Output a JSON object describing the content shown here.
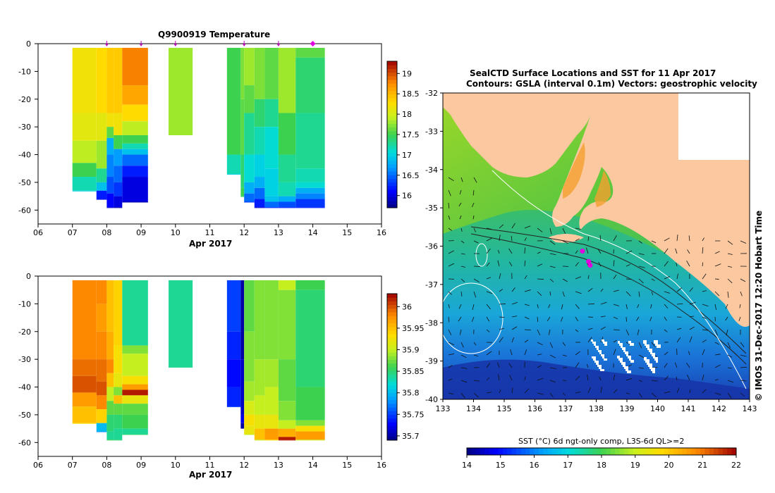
{
  "chart_data": [
    {
      "id": "temperature",
      "type": "heatmap",
      "title": "Q9900919  Temperature",
      "xlabel": "Apr 2017",
      "xlim": [
        6,
        16
      ],
      "ylim": [
        -65,
        0
      ],
      "x_ticks": [
        "06",
        "07",
        "08",
        "09",
        "10",
        "11",
        "12",
        "13",
        "14",
        "15",
        "16"
      ],
      "y_ticks": [
        "0",
        "-10",
        "-20",
        "-30",
        "-40",
        "-50",
        "-60"
      ],
      "colorbar": {
        "min": 15.7,
        "max": 19.3,
        "ticks": [
          "16",
          "16.5",
          "17",
          "17.5",
          "18",
          "18.5",
          "19"
        ]
      },
      "profile_markers": [
        8,
        9,
        10,
        12,
        13,
        14
      ],
      "profiles": [
        {
          "x0": 7.0,
          "x1": 7.7,
          "depth": 53,
          "segments": [
            [
              0,
              18.2
            ],
            [
              -25,
              18.1
            ],
            [
              -35,
              17.9
            ],
            [
              -43,
              17.5
            ],
            [
              -48,
              17.2
            ],
            [
              -53,
              17.0
            ]
          ]
        },
        {
          "x0": 7.7,
          "x1": 8.0,
          "depth": 56,
          "segments": [
            [
              0,
              18.3
            ],
            [
              -25,
              18.1
            ],
            [
              -35,
              17.8
            ],
            [
              -45,
              17.3
            ],
            [
              -50,
              16.9
            ],
            [
              -53,
              16.2
            ],
            [
              -56,
              16.0
            ]
          ]
        },
        {
          "x0": 8.0,
          "x1": 8.2,
          "depth": 59,
          "segments": [
            [
              0,
              18.4
            ],
            [
              -25,
              18.2
            ],
            [
              -30,
              17.6
            ],
            [
              -34,
              16.8
            ],
            [
              -40,
              16.6
            ],
            [
              -48,
              16.4
            ],
            [
              -54,
              16.1
            ],
            [
              -59,
              15.9
            ]
          ]
        },
        {
          "x0": 8.2,
          "x1": 8.45,
          "depth": 59,
          "segments": [
            [
              0,
              18.4
            ],
            [
              -25,
              18.2
            ],
            [
              -33,
              17.5
            ],
            [
              -38,
              16.7
            ],
            [
              -44,
              16.5
            ],
            [
              -50,
              16.3
            ],
            [
              -55,
              16.0
            ],
            [
              -59,
              15.8
            ]
          ]
        },
        {
          "x0": 8.45,
          "x1": 9.2,
          "depth": 57,
          "segments": [
            [
              0,
              18.8
            ],
            [
              -15,
              18.6
            ],
            [
              -22,
              18.3
            ],
            [
              -28,
              17.9
            ],
            [
              -33,
              17.5
            ],
            [
              -36,
              17.2
            ],
            [
              -38,
              16.9
            ],
            [
              -40,
              16.5
            ],
            [
              -44,
              16.2
            ],
            [
              -48,
              16.0
            ],
            [
              -57,
              15.8
            ]
          ]
        },
        {
          "x0": 9.8,
          "x1": 10.5,
          "depth": 33,
          "segments": [
            [
              0,
              17.8
            ]
          ]
        },
        {
          "x0": 11.5,
          "x1": 11.9,
          "depth": 47,
          "segments": [
            [
              0,
              17.5
            ],
            [
              -40,
              17.2
            ],
            [
              -47,
              17.0
            ]
          ]
        },
        {
          "x0": 11.9,
          "x1": 12.0,
          "depth": 55,
          "segments": [
            [
              0,
              17.7
            ],
            [
              -20,
              17.6
            ],
            [
              -40,
              17.4
            ],
            [
              -52,
              17.5
            ],
            [
              -55,
              17.4
            ]
          ]
        },
        {
          "x0": 12.0,
          "x1": 12.3,
          "depth": 57,
          "segments": [
            [
              0,
              17.8
            ],
            [
              -15,
              17.6
            ],
            [
              -25,
              17.3
            ],
            [
              -40,
              17.1
            ],
            [
              -50,
              16.8
            ],
            [
              -54,
              16.5
            ],
            [
              -57,
              16.3
            ]
          ]
        },
        {
          "x0": 12.3,
          "x1": 12.6,
          "depth": 59,
          "segments": [
            [
              0,
              17.7
            ],
            [
              -20,
              17.4
            ],
            [
              -30,
              17.2
            ],
            [
              -40,
              17.0
            ],
            [
              -48,
              16.8
            ],
            [
              -52,
              16.5
            ],
            [
              -56,
              16.2
            ],
            [
              -59,
              15.9
            ]
          ]
        },
        {
          "x0": 12.6,
          "x1": 13.0,
          "depth": 59,
          "segments": [
            [
              0,
              17.6
            ],
            [
              -20,
              17.3
            ],
            [
              -30,
              17.1
            ],
            [
              -45,
              17.0
            ],
            [
              -55,
              16.9
            ],
            [
              -57,
              16.5
            ],
            [
              -59,
              16.2
            ]
          ]
        },
        {
          "x0": 13.0,
          "x1": 13.5,
          "depth": 59,
          "segments": [
            [
              0,
              17.8
            ],
            [
              -25,
              17.5
            ],
            [
              -40,
              17.3
            ],
            [
              -50,
              17.2
            ],
            [
              -55,
              16.8
            ],
            [
              -57,
              16.4
            ],
            [
              -59,
              16.2
            ]
          ]
        },
        {
          "x0": 13.5,
          "x1": 14.35,
          "depth": 59,
          "segments": [
            [
              0,
              17.6
            ],
            [
              -5,
              17.4
            ],
            [
              -25,
              17.3
            ],
            [
              -45,
              17.2
            ],
            [
              -50,
              17.1
            ],
            [
              -52,
              16.8
            ],
            [
              -54,
              16.6
            ],
            [
              -56,
              16.3
            ],
            [
              -59,
              16.2
            ]
          ]
        }
      ]
    },
    {
      "id": "salinity",
      "type": "heatmap",
      "title": "",
      "xlabel": "Apr 2017",
      "xlim": [
        6,
        16
      ],
      "ylim": [
        -65,
        0
      ],
      "x_ticks": [
        "06",
        "07",
        "08",
        "09",
        "10",
        "11",
        "12",
        "13",
        "14",
        "15",
        "16"
      ],
      "y_ticks": [
        "0",
        "-10",
        "-20",
        "-30",
        "-40",
        "-50",
        "-60"
      ],
      "colorbar": {
        "min": 35.69,
        "max": 36.03,
        "ticks": [
          "35.7",
          "35.75",
          "35.8",
          "35.85",
          "35.9",
          "35.95",
          "36"
        ]
      },
      "profiles": [
        {
          "x0": 7.0,
          "x1": 7.7,
          "depth": 53,
          "segments": [
            [
              0,
              35.98
            ],
            [
              -30,
              35.99
            ],
            [
              -36,
              36.0
            ],
            [
              -42,
              35.97
            ],
            [
              -47,
              35.95
            ],
            [
              -53,
              35.93
            ]
          ]
        },
        {
          "x0": 7.7,
          "x1": 8.0,
          "depth": 56,
          "segments": [
            [
              0,
              35.98
            ],
            [
              -10,
              35.97
            ],
            [
              -20,
              35.98
            ],
            [
              -30,
              35.99
            ],
            [
              -38,
              36.0
            ],
            [
              -43,
              35.98
            ],
            [
              -48,
              35.94
            ],
            [
              -53,
              35.8
            ],
            [
              -56,
              35.78
            ]
          ]
        },
        {
          "x0": 8.0,
          "x1": 8.2,
          "depth": 59,
          "segments": [
            [
              0,
              35.95
            ],
            [
              -20,
              35.96
            ],
            [
              -30,
              35.98
            ],
            [
              -35,
              35.95
            ],
            [
              -40,
              35.9
            ],
            [
              -45,
              35.87
            ],
            [
              -50,
              35.85
            ],
            [
              -56,
              35.84
            ],
            [
              -59,
              35.86
            ]
          ]
        },
        {
          "x0": 8.2,
          "x1": 8.45,
          "depth": 59,
          "segments": [
            [
              0,
              35.94
            ],
            [
              -25,
              35.93
            ],
            [
              -35,
              35.92
            ],
            [
              -40,
              35.88
            ],
            [
              -43,
              35.95
            ],
            [
              -46,
              35.87
            ],
            [
              -50,
              35.85
            ],
            [
              -55,
              35.84
            ],
            [
              -59,
              35.85
            ]
          ]
        },
        {
          "x0": 8.45,
          "x1": 9.2,
          "depth": 57,
          "segments": [
            [
              0,
              35.84
            ],
            [
              -25,
              35.88
            ],
            [
              -28,
              35.9
            ],
            [
              -36,
              35.93
            ],
            [
              -39,
              35.97
            ],
            [
              -41,
              36.02
            ],
            [
              -43,
              35.92
            ],
            [
              -46,
              35.87
            ],
            [
              -50,
              35.86
            ],
            [
              -55,
              35.84
            ],
            [
              -57,
              35.85
            ]
          ]
        },
        {
          "x0": 9.8,
          "x1": 10.5,
          "depth": 33,
          "segments": [
            [
              0,
              35.84
            ]
          ]
        },
        {
          "x0": 11.5,
          "x1": 11.9,
          "depth": 47,
          "segments": [
            [
              0,
              35.75
            ],
            [
              -20,
              35.74
            ],
            [
              -30,
              35.73
            ],
            [
              -40,
              35.74
            ],
            [
              -47,
              35.75
            ]
          ]
        },
        {
          "x0": 11.9,
          "x1": 12.0,
          "depth": 55,
          "segments": [
            [
              0,
              35.7
            ],
            [
              -30,
              35.71
            ],
            [
              -50,
              35.72
            ],
            [
              -53,
              35.7
            ]
          ]
        },
        {
          "x0": 12.0,
          "x1": 12.3,
          "depth": 57,
          "segments": [
            [
              0,
              35.87
            ],
            [
              -20,
              35.88
            ],
            [
              -38,
              35.89
            ],
            [
              -45,
              35.91
            ],
            [
              -50,
              35.93
            ],
            [
              -54,
              35.92
            ],
            [
              -57,
              35.9
            ]
          ]
        },
        {
          "x0": 12.3,
          "x1": 12.6,
          "depth": 59,
          "segments": [
            [
              0,
              35.88
            ],
            [
              -30,
              35.89
            ],
            [
              -43,
              35.9
            ],
            [
              -50,
              35.92
            ],
            [
              -55,
              35.95
            ],
            [
              -59,
              35.9
            ]
          ]
        },
        {
          "x0": 12.6,
          "x1": 13.0,
          "depth": 59,
          "segments": [
            [
              0,
              35.88
            ],
            [
              -30,
              35.89
            ],
            [
              -40,
              35.9
            ],
            [
              -50,
              35.92
            ],
            [
              -55,
              35.97
            ],
            [
              -59,
              35.93
            ]
          ]
        },
        {
          "x0": 13.0,
          "x1": 13.5,
          "depth": 59,
          "segments": [
            [
              0,
              35.9
            ],
            [
              -5,
              35.88
            ],
            [
              -30,
              35.87
            ],
            [
              -45,
              35.88
            ],
            [
              -52,
              35.9
            ],
            [
              -55,
              35.96
            ],
            [
              -58,
              36.02
            ],
            [
              -59,
              36.02
            ]
          ]
        },
        {
          "x0": 13.5,
          "x1": 14.35,
          "depth": 59,
          "segments": [
            [
              0,
              35.86
            ],
            [
              -5,
              35.85
            ],
            [
              -40,
              35.86
            ],
            [
              -52,
              35.88
            ],
            [
              -54,
              35.93
            ],
            [
              -56,
              35.97
            ],
            [
              -59,
              35.9
            ]
          ]
        }
      ]
    },
    {
      "id": "sst_map",
      "type": "heatmap",
      "title": "SealCTD Surface Locations and SST for 11 Apr 2017",
      "subtitle": "Contours: GSLA (interval 0.1m)  Vectors: geostrophic velocity",
      "x_ticks": [
        "133",
        "134",
        "135",
        "136",
        "137",
        "138",
        "139",
        "140",
        "141",
        "142",
        "143"
      ],
      "y_ticks": [
        "-32",
        "-33",
        "-34",
        "-35",
        "-36",
        "-37",
        "-38",
        "-39",
        "-40"
      ],
      "xlim": [
        133,
        143
      ],
      "ylim": [
        -40,
        -32
      ],
      "side_label": "© IMOS 31-Dec-2017 12:20 Hobart Time",
      "colorbar": {
        "label": "SST (°C) 6d ngt-only comp, L3S-6d QL>=2",
        "min": 14,
        "max": 22,
        "ticks": [
          "14",
          "15",
          "16",
          "17",
          "18",
          "19",
          "20",
          "21",
          "22"
        ]
      },
      "seal_locations": [
        [
          137.55,
          -36.13
        ],
        [
          137.75,
          -36.4
        ],
        [
          137.8,
          -36.5
        ]
      ]
    }
  ]
}
